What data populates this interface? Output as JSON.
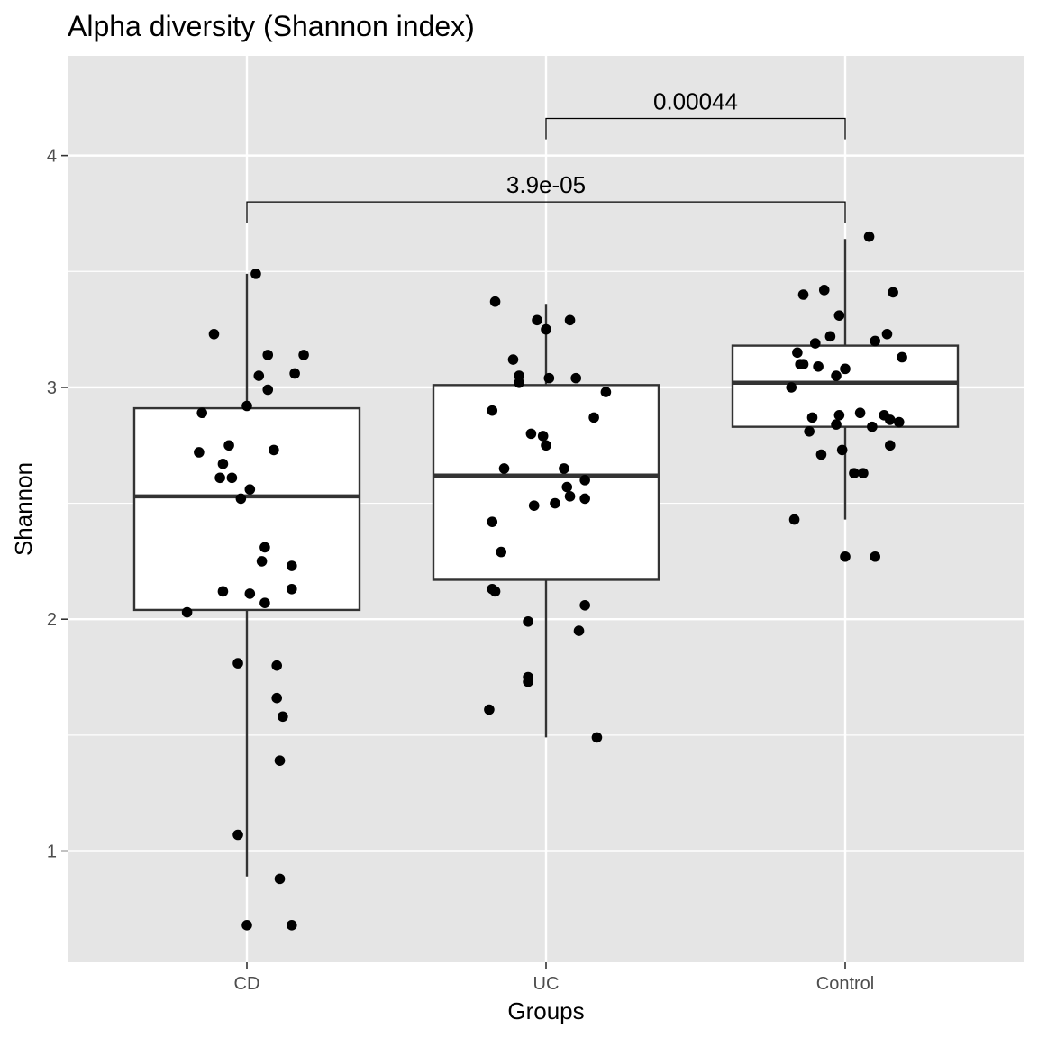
{
  "chart_data": {
    "type": "box",
    "title": "Alpha diversity (Shannon index)",
    "xlabel": "Groups",
    "ylabel": "Shannon",
    "ylim": [
      0.52,
      4.43
    ],
    "y_ticks": [
      1,
      2,
      3,
      4
    ],
    "y_tick_labels": [
      "1",
      "2",
      "3",
      "4"
    ],
    "grid": true,
    "categories": [
      "CD",
      "UC",
      "Control"
    ],
    "boxes": [
      {
        "category": "CD",
        "whisker_low": 0.89,
        "q1": 2.04,
        "median": 2.53,
        "q3": 2.91,
        "whisker_high": 3.49
      },
      {
        "category": "UC",
        "whisker_low": 1.49,
        "q1": 2.17,
        "median": 2.62,
        "q3": 3.01,
        "whisker_high": 3.36
      },
      {
        "category": "Control",
        "whisker_low": 2.43,
        "q1": 2.83,
        "median": 3.02,
        "q3": 3.18,
        "whisker_high": 3.64
      }
    ],
    "points": {
      "CD": [
        {
          "x": 0.03,
          "y": 3.49
        },
        {
          "x": -0.11,
          "y": 3.23
        },
        {
          "x": 0.07,
          "y": 3.14
        },
        {
          "x": 0.19,
          "y": 3.14
        },
        {
          "x": 0.04,
          "y": 3.05
        },
        {
          "x": 0.16,
          "y": 3.06
        },
        {
          "x": 0.07,
          "y": 2.99
        },
        {
          "x": 0.0,
          "y": 2.92
        },
        {
          "x": -0.15,
          "y": 2.89
        },
        {
          "x": -0.06,
          "y": 2.75
        },
        {
          "x": -0.16,
          "y": 2.72
        },
        {
          "x": 0.09,
          "y": 2.73
        },
        {
          "x": -0.08,
          "y": 2.67
        },
        {
          "x": -0.09,
          "y": 2.61
        },
        {
          "x": -0.05,
          "y": 2.61
        },
        {
          "x": 0.01,
          "y": 2.56
        },
        {
          "x": -0.02,
          "y": 2.52
        },
        {
          "x": 0.06,
          "y": 2.31
        },
        {
          "x": 0.05,
          "y": 2.25
        },
        {
          "x": 0.15,
          "y": 2.23
        },
        {
          "x": -0.08,
          "y": 2.12
        },
        {
          "x": 0.01,
          "y": 2.11
        },
        {
          "x": 0.15,
          "y": 2.13
        },
        {
          "x": 0.06,
          "y": 2.07
        },
        {
          "x": -0.2,
          "y": 2.03
        },
        {
          "x": -0.03,
          "y": 1.81
        },
        {
          "x": 0.1,
          "y": 1.8
        },
        {
          "x": 0.1,
          "y": 1.66
        },
        {
          "x": 0.12,
          "y": 1.58
        },
        {
          "x": 0.11,
          "y": 1.39
        },
        {
          "x": -0.03,
          "y": 1.07
        },
        {
          "x": 0.11,
          "y": 0.88
        },
        {
          "x": 0.0,
          "y": 0.68
        },
        {
          "x": 0.15,
          "y": 0.68
        }
      ],
      "UC": [
        {
          "x": -0.17,
          "y": 3.37
        },
        {
          "x": -0.03,
          "y": 3.29
        },
        {
          "x": 0.0,
          "y": 3.25
        },
        {
          "x": 0.08,
          "y": 3.29
        },
        {
          "x": -0.11,
          "y": 3.12
        },
        {
          "x": -0.09,
          "y": 3.05
        },
        {
          "x": 0.01,
          "y": 3.04
        },
        {
          "x": 0.1,
          "y": 3.04
        },
        {
          "x": -0.09,
          "y": 3.02
        },
        {
          "x": 0.2,
          "y": 2.98
        },
        {
          "x": -0.18,
          "y": 2.9
        },
        {
          "x": 0.16,
          "y": 2.87
        },
        {
          "x": -0.05,
          "y": 2.8
        },
        {
          "x": -0.01,
          "y": 2.79
        },
        {
          "x": 0.0,
          "y": 2.75
        },
        {
          "x": -0.14,
          "y": 2.65
        },
        {
          "x": 0.06,
          "y": 2.65
        },
        {
          "x": 0.13,
          "y": 2.6
        },
        {
          "x": 0.07,
          "y": 2.57
        },
        {
          "x": 0.08,
          "y": 2.53
        },
        {
          "x": 0.13,
          "y": 2.52
        },
        {
          "x": 0.03,
          "y": 2.5
        },
        {
          "x": -0.04,
          "y": 2.49
        },
        {
          "x": -0.18,
          "y": 2.42
        },
        {
          "x": -0.15,
          "y": 2.29
        },
        {
          "x": -0.18,
          "y": 2.13
        },
        {
          "x": -0.17,
          "y": 2.12
        },
        {
          "x": 0.13,
          "y": 2.06
        },
        {
          "x": -0.06,
          "y": 1.99
        },
        {
          "x": 0.11,
          "y": 1.95
        },
        {
          "x": -0.06,
          "y": 1.75
        },
        {
          "x": -0.06,
          "y": 1.73
        },
        {
          "x": -0.19,
          "y": 1.61
        },
        {
          "x": 0.17,
          "y": 1.49
        }
      ],
      "Control": [
        {
          "x": 0.08,
          "y": 3.65
        },
        {
          "x": -0.14,
          "y": 3.4
        },
        {
          "x": -0.07,
          "y": 3.42
        },
        {
          "x": 0.16,
          "y": 3.41
        },
        {
          "x": -0.02,
          "y": 3.31
        },
        {
          "x": 0.14,
          "y": 3.23
        },
        {
          "x": -0.05,
          "y": 3.22
        },
        {
          "x": -0.1,
          "y": 3.19
        },
        {
          "x": 0.1,
          "y": 3.2
        },
        {
          "x": -0.16,
          "y": 3.15
        },
        {
          "x": 0.19,
          "y": 3.13
        },
        {
          "x": -0.15,
          "y": 3.1
        },
        {
          "x": -0.14,
          "y": 3.1
        },
        {
          "x": -0.09,
          "y": 3.09
        },
        {
          "x": 0.0,
          "y": 3.08
        },
        {
          "x": -0.03,
          "y": 3.05
        },
        {
          "x": -0.18,
          "y": 3.0
        },
        {
          "x": -0.11,
          "y": 2.87
        },
        {
          "x": -0.02,
          "y": 2.88
        },
        {
          "x": 0.05,
          "y": 2.89
        },
        {
          "x": 0.13,
          "y": 2.88
        },
        {
          "x": 0.15,
          "y": 2.86
        },
        {
          "x": 0.18,
          "y": 2.85
        },
        {
          "x": -0.03,
          "y": 2.84
        },
        {
          "x": 0.09,
          "y": 2.83
        },
        {
          "x": -0.12,
          "y": 2.81
        },
        {
          "x": 0.15,
          "y": 2.75
        },
        {
          "x": -0.01,
          "y": 2.73
        },
        {
          "x": -0.08,
          "y": 2.71
        },
        {
          "x": 0.03,
          "y": 2.63
        },
        {
          "x": 0.06,
          "y": 2.63
        },
        {
          "x": -0.17,
          "y": 2.43
        },
        {
          "x": 0.0,
          "y": 2.27
        },
        {
          "x": 0.1,
          "y": 2.27
        }
      ]
    },
    "comparisons": [
      {
        "from": "UC",
        "to": "Control",
        "label": "0.00044",
        "y": 4.16,
        "tick_low": 4.07
      },
      {
        "from": "CD",
        "to": "Control",
        "label": "3.9e-05",
        "y": 3.8,
        "tick_low": 3.71
      }
    ],
    "colors": {
      "panel": "#e5e5e5",
      "grid": "#ffffff",
      "box_fill": "#ffffff",
      "line": "#333333",
      "point": "#000000",
      "tick": "#4d4d4d"
    }
  }
}
